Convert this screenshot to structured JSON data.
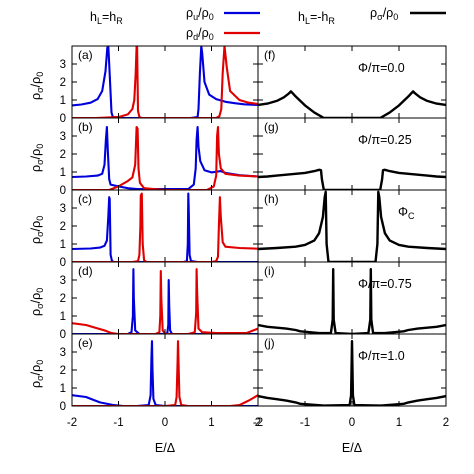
{
  "header": {
    "left_condition": "h_L=h_R",
    "right_condition": "h_L=-h_R",
    "legend_up": "ρ_u/ρ_0",
    "legend_down": "ρ_d/ρ_0",
    "legend_sigma": "ρ_σ/ρ_0"
  },
  "colors": {
    "up": "#0000dd",
    "down": "#e00000",
    "sigma": "#000000",
    "axis": "#000000"
  },
  "chart_data": [
    {
      "type": "line",
      "panel": "(a)",
      "column": "left",
      "xlabel": "E/Δ",
      "ylabel": "ρ_σ/ρ_0",
      "xlim": [
        -2,
        2
      ],
      "ylim": [
        0,
        4
      ],
      "xticks": [
        -2,
        -1,
        0,
        1,
        2
      ],
      "yticks": [
        0,
        1,
        2,
        3
      ],
      "series": [
        {
          "name": "ρ_u/ρ_0",
          "color": "#0000dd",
          "x": [
            -2.0,
            -1.8,
            -1.6,
            -1.45,
            -1.35,
            -1.28,
            -1.24,
            -1.22,
            -1.2,
            -1.15,
            -1.12,
            -0.9,
            0.55,
            0.7,
            0.72,
            0.75,
            0.78,
            0.8,
            0.85,
            0.95,
            1.1,
            1.3,
            1.5,
            1.7,
            2.0
          ],
          "y": [
            0.7,
            0.75,
            0.85,
            1.05,
            1.5,
            2.6,
            3.9,
            4.0,
            3.0,
            0.3,
            0.05,
            0.0,
            0.0,
            0.05,
            0.5,
            2.5,
            4.0,
            3.6,
            2.0,
            1.3,
            1.05,
            0.9,
            0.82,
            0.76,
            0.72
          ]
        },
        {
          "name": "ρ_d/ρ_0",
          "color": "#e00000",
          "x": [
            -2.0,
            -1.5,
            -1.0,
            -0.8,
            -0.7,
            -0.66,
            -0.63,
            -0.61,
            -0.6,
            -0.58,
            -0.55,
            -0.5,
            1.1,
            1.17,
            1.21,
            1.24,
            1.28,
            1.33,
            1.4,
            1.6,
            1.8,
            2.0
          ],
          "y": [
            0.0,
            0.0,
            0.05,
            0.2,
            0.5,
            1.0,
            2.5,
            4.0,
            4.0,
            0.4,
            0.05,
            0.0,
            0.0,
            0.1,
            0.5,
            2.5,
            4.0,
            2.8,
            1.5,
            1.0,
            0.85,
            0.78
          ]
        }
      ]
    },
    {
      "type": "line",
      "panel": "(b)",
      "column": "left",
      "xlabel": "E/Δ",
      "ylabel": "ρ_σ/ρ_0",
      "xlim": [
        -2,
        2
      ],
      "ylim": [
        0,
        4
      ],
      "xticks": [
        -2,
        -1,
        0,
        1,
        2
      ],
      "yticks": [
        0,
        1,
        2,
        3
      ],
      "series": [
        {
          "name": "ρ_u/ρ_0",
          "color": "#0000dd",
          "x": [
            -2.0,
            -1.7,
            -1.45,
            -1.35,
            -1.3,
            -1.27,
            -1.25,
            -1.23,
            -1.2,
            -1.17,
            -1.0,
            -0.8,
            -0.6,
            0.5,
            0.62,
            0.66,
            0.68,
            0.7,
            0.72,
            0.76,
            0.85,
            1.0,
            1.2,
            1.3,
            1.6,
            2.0
          ],
          "y": [
            0.72,
            0.75,
            0.8,
            0.9,
            1.4,
            2.8,
            3.5,
            2.2,
            0.6,
            0.3,
            0.2,
            0.1,
            0.05,
            0.05,
            0.3,
            1.2,
            2.8,
            3.5,
            2.4,
            1.6,
            1.1,
            0.98,
            1.05,
            0.95,
            0.82,
            0.75
          ]
        },
        {
          "name": "ρ_d/ρ_0",
          "color": "#e00000",
          "x": [
            -2.0,
            -1.2,
            -1.0,
            -0.8,
            -0.7,
            -0.64,
            -0.61,
            -0.59,
            -0.57,
            -0.54,
            -0.45,
            0.0,
            0.9,
            1.05,
            1.1,
            1.12,
            1.14,
            1.16,
            1.2,
            1.3,
            1.6,
            2.0
          ],
          "y": [
            0.0,
            0.0,
            0.2,
            0.5,
            0.7,
            1.4,
            3.5,
            3.4,
            1.2,
            0.4,
            0.1,
            0.0,
            0.0,
            0.2,
            0.8,
            3.0,
            3.5,
            2.0,
            1.2,
            0.9,
            0.8,
            0.75
          ]
        }
      ]
    },
    {
      "type": "line",
      "panel": "(c)",
      "column": "left",
      "xlabel": "E/Δ",
      "ylabel": "ρ_σ/ρ_0",
      "xlim": [
        -2,
        2
      ],
      "ylim": [
        0,
        4
      ],
      "xticks": [
        -2,
        -1,
        0,
        1,
        2
      ],
      "yticks": [
        0,
        1,
        2,
        3
      ],
      "series": [
        {
          "name": "ρ_u/ρ_0",
          "color": "#0000dd",
          "x": [
            -2.0,
            -1.6,
            -1.4,
            -1.3,
            -1.25,
            -1.22,
            -1.2,
            -1.19,
            -1.17,
            -1.14,
            -1.1,
            -1.0,
            0.4,
            0.47,
            0.49,
            0.5,
            0.51,
            0.53,
            0.56,
            0.7,
            1.0,
            1.4,
            2.0
          ],
          "y": [
            0.72,
            0.75,
            0.8,
            0.9,
            1.2,
            2.5,
            3.6,
            3.5,
            0.4,
            0.05,
            0.0,
            0.0,
            0.0,
            0.05,
            1.0,
            3.8,
            3.0,
            0.4,
            0.05,
            0.0,
            0.0,
            0.0,
            0.0
          ]
        },
        {
          "name": "ρ_d/ρ_0",
          "color": "#e00000",
          "x": [
            -2.0,
            -1.0,
            -0.7,
            -0.58,
            -0.55,
            -0.53,
            -0.52,
            -0.5,
            -0.48,
            -0.45,
            -0.4,
            1.0,
            1.1,
            1.14,
            1.16,
            1.18,
            1.2,
            1.24,
            1.3,
            1.6,
            2.0
          ],
          "y": [
            0.0,
            0.0,
            0.0,
            0.05,
            0.4,
            2.0,
            3.7,
            3.8,
            1.0,
            0.1,
            0.0,
            0.0,
            0.05,
            0.3,
            2.0,
            3.6,
            2.5,
            1.1,
            0.85,
            0.78,
            0.74
          ]
        }
      ]
    },
    {
      "type": "line",
      "panel": "(d)",
      "column": "left",
      "xlabel": "E/Δ",
      "ylabel": "ρ_σ/ρ_0",
      "xlim": [
        -2,
        2
      ],
      "ylim": [
        0,
        4
      ],
      "xticks": [
        -2,
        -1,
        0,
        1,
        2
      ],
      "yticks": [
        0,
        1,
        2,
        3
      ],
      "series": [
        {
          "name": "ρ_u/ρ_0",
          "color": "#0000dd",
          "x": [
            -2.0,
            -1.6,
            -1.3,
            -1.0,
            -0.8,
            -0.72,
            -0.69,
            -0.68,
            -0.67,
            -0.64,
            -0.55,
            0.0,
            0.05,
            0.07,
            0.08,
            0.09,
            0.11,
            0.15,
            0.3,
            0.6,
            1.0,
            1.5,
            2.0
          ],
          "y": [
            0.0,
            0.0,
            0.0,
            0.0,
            0.0,
            0.1,
            1.0,
            3.6,
            2.0,
            0.2,
            0.0,
            0.0,
            0.05,
            0.5,
            3.0,
            1.6,
            0.2,
            0.0,
            0.0,
            0.0,
            0.0,
            0.0,
            0.0
          ]
        },
        {
          "name": "ρ_d/ρ_0",
          "color": "#e00000",
          "x": [
            -2.0,
            -1.7,
            -1.5,
            -1.3,
            -1.15,
            -1.0,
            -0.6,
            -0.2,
            -0.12,
            -0.1,
            -0.09,
            -0.08,
            -0.05,
            0.0,
            0.5,
            0.64,
            0.67,
            0.68,
            0.69,
            0.72,
            0.8,
            1.1,
            1.4,
            1.6,
            1.75,
            2.0
          ],
          "y": [
            0.6,
            0.5,
            0.35,
            0.2,
            0.05,
            0.0,
            0.0,
            0.0,
            0.1,
            1.0,
            3.5,
            2.0,
            0.2,
            0.0,
            0.0,
            0.1,
            1.2,
            3.6,
            2.4,
            0.3,
            0.1,
            0.05,
            0.05,
            0.05,
            0.05,
            0.3
          ]
        }
      ]
    },
    {
      "type": "line",
      "panel": "(e)",
      "column": "left",
      "xlabel": "E/Δ",
      "ylabel": "ρ_σ/ρ_0",
      "xlim": [
        -2,
        2
      ],
      "ylim": [
        0,
        4
      ],
      "xticks": [
        -2,
        -1,
        0,
        1,
        2
      ],
      "yticks": [
        0,
        1,
        2,
        3
      ],
      "series": [
        {
          "name": "ρ_u/ρ_0",
          "color": "#0000dd",
          "x": [
            -2.0,
            -1.7,
            -1.4,
            -1.1,
            -0.9,
            -0.6,
            -0.35,
            -0.31,
            -0.29,
            -0.28,
            -0.27,
            -0.25,
            -0.2,
            0.0,
            0.5,
            1.0,
            1.5,
            2.0
          ],
          "y": [
            0.6,
            0.5,
            0.2,
            0.05,
            0.0,
            0.0,
            0.05,
            0.6,
            2.8,
            3.6,
            2.2,
            0.4,
            0.05,
            0.0,
            0.0,
            0.0,
            0.0,
            0.0
          ]
        },
        {
          "name": "ρ_d/ρ_0",
          "color": "#e00000",
          "x": [
            -2.0,
            -1.0,
            0.0,
            0.22,
            0.25,
            0.27,
            0.28,
            0.29,
            0.31,
            0.35,
            0.5,
            1.0,
            1.4,
            1.6,
            1.8,
            2.0
          ],
          "y": [
            0.0,
            0.0,
            0.0,
            0.05,
            0.5,
            2.5,
            3.6,
            2.5,
            0.5,
            0.05,
            0.0,
            0.0,
            0.0,
            0.05,
            0.3,
            0.6
          ]
        }
      ]
    },
    {
      "type": "line",
      "panel": "(f)",
      "column": "right",
      "annotation": "Φ/π=0.0",
      "xlabel": "E/Δ",
      "ylim": [
        0,
        4
      ],
      "xlim": [
        -2,
        2
      ],
      "xticks": [
        -2,
        -1,
        0,
        1,
        2
      ],
      "yticks": [
        0,
        1,
        2,
        3
      ],
      "series": [
        {
          "name": "ρ_σ/ρ_0",
          "color": "#000000",
          "x": [
            -2.0,
            -1.8,
            -1.6,
            -1.45,
            -1.35,
            -1.3,
            -1.27,
            -1.2,
            -1.1,
            -1.0,
            -0.8,
            -0.65,
            -0.6,
            0.6,
            0.65,
            0.8,
            1.0,
            1.1,
            1.2,
            1.27,
            1.3,
            1.35,
            1.45,
            1.6,
            1.8,
            2.0
          ],
          "y": [
            0.72,
            0.8,
            0.95,
            1.15,
            1.35,
            1.48,
            1.4,
            1.2,
            0.95,
            0.7,
            0.3,
            0.08,
            0.0,
            0.0,
            0.08,
            0.3,
            0.7,
            0.95,
            1.2,
            1.4,
            1.48,
            1.35,
            1.15,
            0.95,
            0.8,
            0.72
          ]
        }
      ]
    },
    {
      "type": "line",
      "panel": "(g)",
      "column": "right",
      "annotation": "Φ/π=0.25",
      "xlabel": "E/Δ",
      "ylim": [
        0,
        4
      ],
      "xlim": [
        -2,
        2
      ],
      "xticks": [
        -2,
        -1,
        0,
        1,
        2
      ],
      "yticks": [
        0,
        1,
        2,
        3
      ],
      "series": [
        {
          "name": "ρ_σ/ρ_0",
          "color": "#000000",
          "x": [
            -2.0,
            -1.8,
            -1.6,
            -1.4,
            -1.2,
            -1.0,
            -0.8,
            -0.7,
            -0.66,
            -0.64,
            -0.6,
            0.6,
            0.64,
            0.66,
            0.7,
            0.8,
            1.0,
            1.2,
            1.4,
            1.6,
            1.8,
            2.0
          ],
          "y": [
            0.72,
            0.75,
            0.8,
            0.85,
            0.9,
            0.95,
            1.05,
            1.12,
            1.1,
            0.6,
            0.0,
            0.0,
            0.6,
            1.1,
            1.12,
            1.05,
            0.95,
            0.9,
            0.85,
            0.8,
            0.75,
            0.72
          ]
        }
      ]
    },
    {
      "type": "line",
      "panel": "(h)",
      "column": "right",
      "annotation": "Φ_C",
      "xlabel": "E/Δ",
      "ylim": [
        0,
        4
      ],
      "xlim": [
        -2,
        2
      ],
      "xticks": [
        -2,
        -1,
        0,
        1,
        2
      ],
      "yticks": [
        0,
        1,
        2,
        3
      ],
      "series": [
        {
          "name": "ρ_σ/ρ_0",
          "color": "#000000",
          "x": [
            -2.0,
            -1.6,
            -1.2,
            -1.0,
            -0.8,
            -0.7,
            -0.62,
            -0.58,
            -0.56,
            -0.54,
            -0.5,
            0.5,
            0.54,
            0.56,
            0.58,
            0.62,
            0.7,
            0.8,
            1.0,
            1.2,
            1.6,
            2.0
          ],
          "y": [
            0.72,
            0.78,
            0.85,
            0.95,
            1.2,
            1.6,
            2.5,
            3.6,
            3.9,
            1.0,
            0.0,
            0.0,
            1.0,
            3.9,
            3.6,
            2.5,
            1.6,
            1.2,
            0.95,
            0.85,
            0.78,
            0.72
          ]
        }
      ]
    },
    {
      "type": "line",
      "panel": "(i)",
      "column": "right",
      "annotation": "Φ/π=0.75",
      "xlabel": "E/Δ",
      "ylim": [
        0,
        4
      ],
      "xlim": [
        -2,
        2
      ],
      "xticks": [
        -2,
        -1,
        0,
        1,
        2
      ],
      "yticks": [
        0,
        1,
        2,
        3
      ],
      "series": [
        {
          "name": "ρ_σ/ρ_0",
          "color": "#000000",
          "x": [
            -2.0,
            -1.8,
            -1.6,
            -1.4,
            -1.2,
            -1.1,
            -0.7,
            -0.45,
            -0.41,
            -0.4,
            -0.39,
            -0.35,
            0.0,
            0.35,
            0.39,
            0.4,
            0.41,
            0.45,
            0.7,
            1.1,
            1.2,
            1.4,
            1.6,
            1.8,
            2.0
          ],
          "y": [
            0.5,
            0.4,
            0.35,
            0.3,
            0.22,
            0.15,
            0.05,
            0.05,
            0.8,
            3.6,
            0.8,
            0.05,
            0.0,
            0.05,
            0.8,
            3.6,
            0.8,
            0.05,
            0.05,
            0.15,
            0.22,
            0.3,
            0.35,
            0.4,
            0.5
          ]
        }
      ]
    },
    {
      "type": "line",
      "panel": "(j)",
      "column": "right",
      "annotation": "Φ/π=1.0",
      "xlabel": "E/Δ",
      "ylim": [
        0,
        4
      ],
      "xlim": [
        -2,
        2
      ],
      "xticks": [
        -2,
        -1,
        0,
        1,
        2
      ],
      "yticks": [
        0,
        1,
        2,
        3
      ],
      "series": [
        {
          "name": "ρ_σ/ρ_0",
          "color": "#000000",
          "x": [
            -2.0,
            -1.8,
            -1.6,
            -1.4,
            -1.2,
            -1.1,
            -0.6,
            -0.05,
            -0.02,
            0.0,
            0.02,
            0.05,
            0.6,
            1.1,
            1.2,
            1.4,
            1.6,
            1.8,
            2.0
          ],
          "y": [
            0.55,
            0.45,
            0.38,
            0.3,
            0.2,
            0.12,
            0.02,
            0.05,
            0.6,
            3.6,
            0.6,
            0.05,
            0.02,
            0.12,
            0.2,
            0.3,
            0.38,
            0.45,
            0.55
          ]
        }
      ]
    }
  ]
}
